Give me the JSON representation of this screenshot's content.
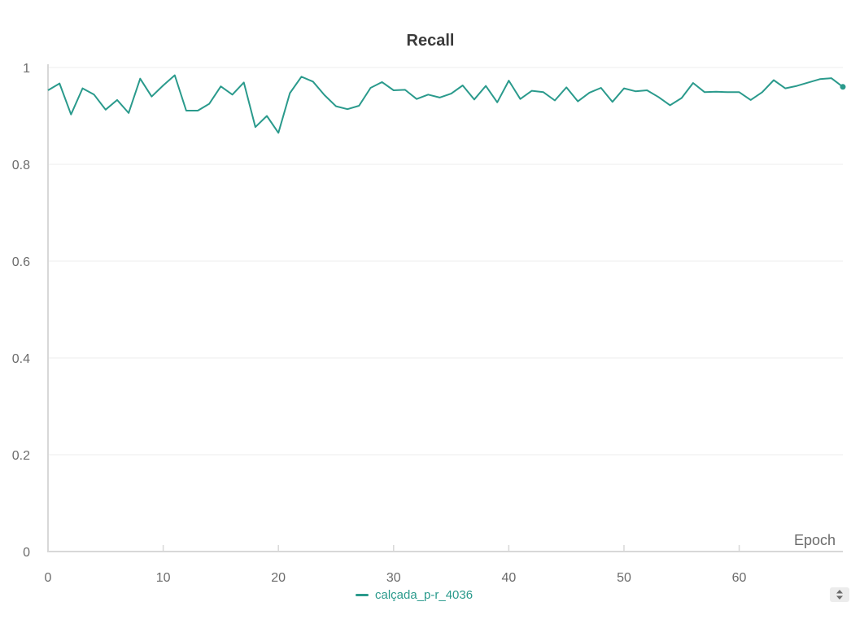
{
  "colors": {
    "series": "#2a9a8c",
    "grid": "#eeeeee",
    "axis": "#d8d8d8",
    "text": "#6b6b6b"
  },
  "legend": {
    "label": "calçada_p-r_4036"
  },
  "chart_data": {
    "type": "line",
    "title": "Recall",
    "xlabel": "Epoch",
    "ylabel": "",
    "xlim": [
      0,
      69
    ],
    "ylim": [
      0,
      1
    ],
    "xticks": [
      0,
      10,
      20,
      30,
      40,
      50,
      60
    ],
    "yticks": [
      0,
      0.2,
      0.4,
      0.6,
      0.8,
      1
    ],
    "ytick_labels": [
      "0",
      "0.2",
      "0.4",
      "0.6",
      "0.8",
      "1"
    ],
    "grid": true,
    "legend_position": "bottom-center",
    "series": [
      {
        "name": "calçada_p-r_4036",
        "x": [
          0,
          1,
          2,
          3,
          4,
          5,
          6,
          7,
          8,
          9,
          10,
          11,
          12,
          13,
          14,
          15,
          16,
          17,
          18,
          19,
          20,
          21,
          22,
          23,
          24,
          25,
          26,
          27,
          28,
          29,
          30,
          31,
          32,
          33,
          34,
          35,
          36,
          37,
          38,
          39,
          40,
          41,
          42,
          43,
          44,
          45,
          46,
          47,
          48,
          49,
          50,
          51,
          52,
          53,
          54,
          55,
          56,
          57,
          58,
          59,
          60,
          61,
          62,
          63,
          64,
          65,
          66,
          67,
          68,
          69
        ],
        "values": [
          0.953,
          0.967,
          0.903,
          0.957,
          0.944,
          0.913,
          0.933,
          0.906,
          0.977,
          0.94,
          0.963,
          0.984,
          0.911,
          0.911,
          0.925,
          0.961,
          0.944,
          0.969,
          0.877,
          0.9,
          0.865,
          0.947,
          0.981,
          0.971,
          0.943,
          0.92,
          0.914,
          0.921,
          0.958,
          0.97,
          0.953,
          0.954,
          0.935,
          0.944,
          0.938,
          0.946,
          0.963,
          0.934,
          0.962,
          0.928,
          0.973,
          0.935,
          0.952,
          0.949,
          0.932,
          0.959,
          0.93,
          0.948,
          0.958,
          0.929,
          0.957,
          0.951,
          0.953,
          0.939,
          0.922,
          0.937,
          0.968,
          0.949,
          0.95,
          0.949,
          0.949,
          0.933,
          0.949,
          0.974,
          0.957,
          0.962,
          0.969,
          0.976,
          0.978,
          0.96
        ]
      }
    ]
  }
}
